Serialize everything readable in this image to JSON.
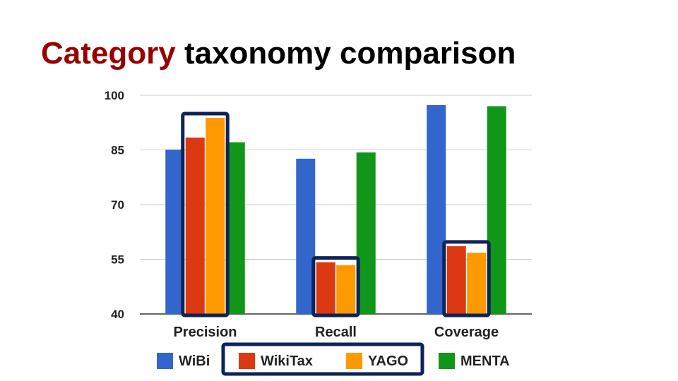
{
  "slide": {
    "title_accent": "Category",
    "title_rest": " taxonomy comparison"
  },
  "chart_data": {
    "type": "bar",
    "categories": [
      "Precision",
      "Recall",
      "Coverage"
    ],
    "series": [
      {
        "name": "WiBi",
        "color": "#3366cc",
        "values": [
          85.1,
          82.6,
          97.3
        ]
      },
      {
        "name": "WikiTax",
        "color": "#dc3912",
        "values": [
          88.4,
          54.2,
          58.6
        ]
      },
      {
        "name": "YAGO",
        "color": "#ff9900",
        "values": [
          93.8,
          53.4,
          56.8
        ]
      },
      {
        "name": "MENTA",
        "color": "#109618",
        "values": [
          87.1,
          84.3,
          97.0
        ]
      }
    ],
    "yticks": [
      40,
      55,
      70,
      85,
      100
    ],
    "ylim": [
      40,
      100
    ],
    "grid": true,
    "legend_position": "bottom",
    "highlighted_series": [
      "WikiTax",
      "YAGO"
    ],
    "highlight_color": "#0d2359"
  }
}
